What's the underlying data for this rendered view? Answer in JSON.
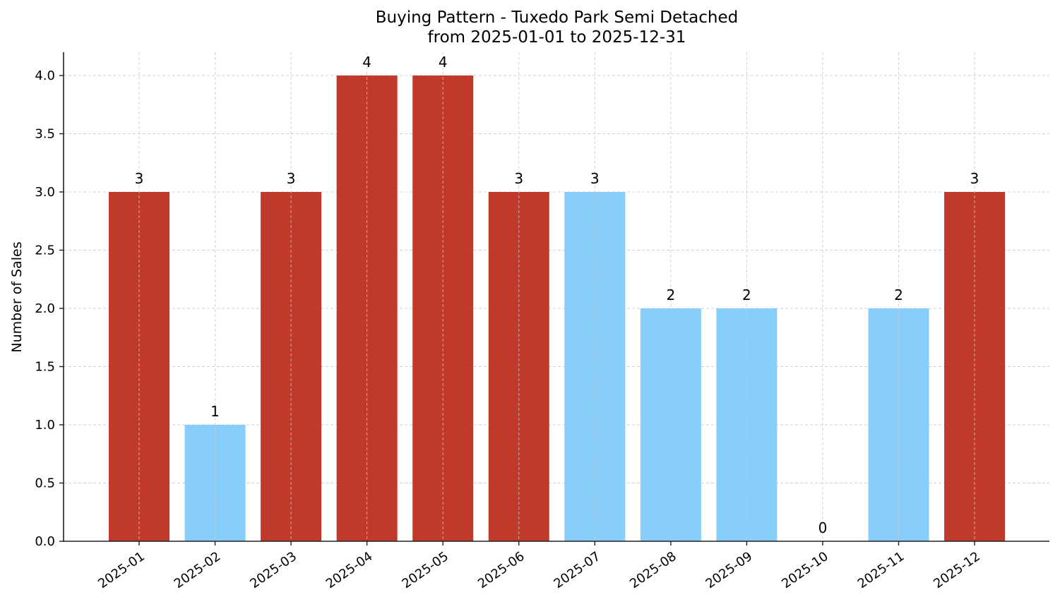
{
  "chart_data": {
    "type": "bar",
    "title": "Buying Pattern - Tuxedo Park Semi Detached",
    "subtitle": "from 2025-01-01 to 2025-12-31",
    "xlabel": "",
    "ylabel": "Number of Sales",
    "categories": [
      "2025-01",
      "2025-02",
      "2025-03",
      "2025-04",
      "2025-05",
      "2025-06",
      "2025-07",
      "2025-08",
      "2025-09",
      "2025-10",
      "2025-11",
      "2025-12"
    ],
    "values": [
      3,
      1,
      3,
      4,
      4,
      3,
      3,
      2,
      2,
      0,
      2,
      3
    ],
    "bar_colors": [
      "#c0392b",
      "#87cefa",
      "#c0392b",
      "#c0392b",
      "#c0392b",
      "#c0392b",
      "#87cefa",
      "#87cefa",
      "#87cefa",
      "#87cefa",
      "#87cefa",
      "#c0392b"
    ],
    "data_labels": [
      "3",
      "1",
      "3",
      "4",
      "4",
      "3",
      "3",
      "2",
      "2",
      "0",
      "2",
      "3"
    ],
    "yticks": [
      0.0,
      0.5,
      1.0,
      1.5,
      2.0,
      2.5,
      3.0,
      3.5,
      4.0
    ],
    "ytick_labels": [
      "0.0",
      "0.5",
      "1.0",
      "1.5",
      "2.0",
      "2.5",
      "3.0",
      "3.5",
      "4.0"
    ],
    "ylim": [
      0,
      4.2
    ],
    "grid": true,
    "grid_style": "dashed",
    "legend": null
  }
}
